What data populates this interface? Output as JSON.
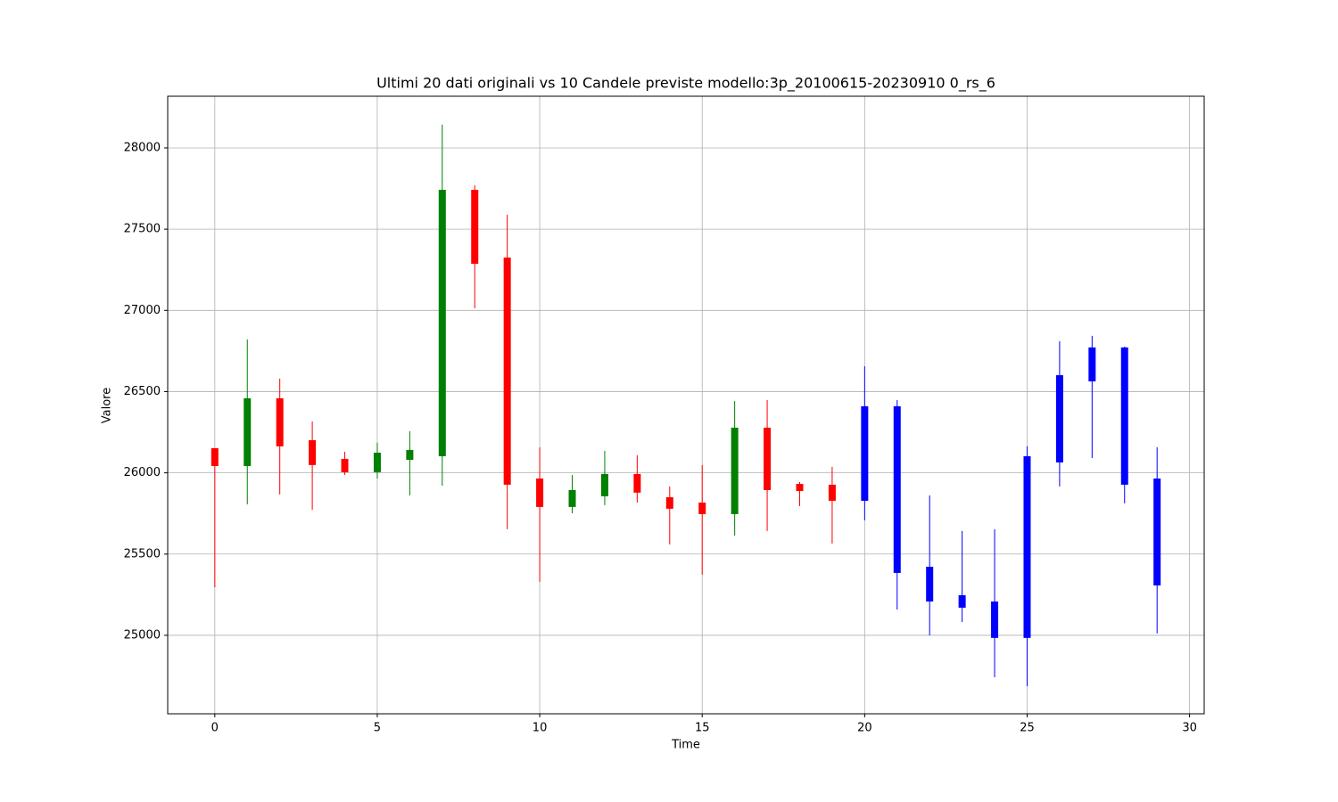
{
  "chart_data": {
    "type": "candlestick",
    "title": "Ultimi 20 dati originali vs 10 Candele previste modello:3p_20100615-20230910 0_rs_6",
    "x_label": "Time",
    "y_label": "Valore",
    "xlim": [
      -1.45,
      30.45
    ],
    "ylim": [
      24517,
      28318
    ],
    "xticks": [
      0,
      5,
      10,
      15,
      20,
      25,
      30
    ],
    "yticks": [
      25000,
      25500,
      26000,
      26500,
      27000,
      27500,
      28000
    ],
    "grid": true,
    "series": [
      {
        "up_color": "green",
        "down_color": "red",
        "x": [
          0,
          1,
          2,
          3,
          4,
          5,
          6,
          7,
          8,
          9,
          10,
          11,
          12,
          13,
          14,
          15,
          16,
          17,
          18,
          19
        ],
        "open": [
          26152,
          26042,
          26459,
          26201,
          26086,
          26004,
          26080,
          26102,
          27742,
          27325,
          25965,
          25790,
          25856,
          25993,
          25850,
          25817,
          25746,
          26278,
          25932,
          25927
        ],
        "high": [
          26152,
          26821,
          26580,
          26316,
          26130,
          26185,
          26256,
          28143,
          27770,
          27589,
          26157,
          25987,
          26135,
          26108,
          25916,
          26048,
          26442,
          26448,
          25943,
          26037
        ],
        "low": [
          25296,
          25806,
          25867,
          25773,
          25987,
          25965,
          25861,
          25921,
          27013,
          25653,
          25329,
          25751,
          25801,
          25817,
          25559,
          25373,
          25614,
          25642,
          25795,
          25565
        ],
        "close": [
          26042,
          26459,
          26163,
          26048,
          26004,
          26124,
          26141,
          27742,
          27287,
          25927,
          25790,
          25894,
          25993,
          25878,
          25779,
          25746,
          26278,
          25894,
          25888,
          25828
        ]
      },
      {
        "color": "blue",
        "x": [
          20,
          21,
          22,
          23,
          24,
          25,
          26,
          27,
          28,
          29
        ],
        "open": [
          25828,
          26410,
          25422,
          25247,
          25208,
          24984,
          26064,
          26563,
          26772,
          25965
        ],
        "high": [
          26656,
          26448,
          25861,
          25642,
          25653,
          26163,
          26810,
          26843,
          26777,
          26157
        ],
        "low": [
          25708,
          25159,
          25000,
          25082,
          24742,
          24687,
          25916,
          26091,
          25812,
          25011
        ],
        "close": [
          26410,
          25384,
          25208,
          25170,
          24984,
          26102,
          26601,
          26772,
          25927,
          25307
        ]
      }
    ]
  }
}
